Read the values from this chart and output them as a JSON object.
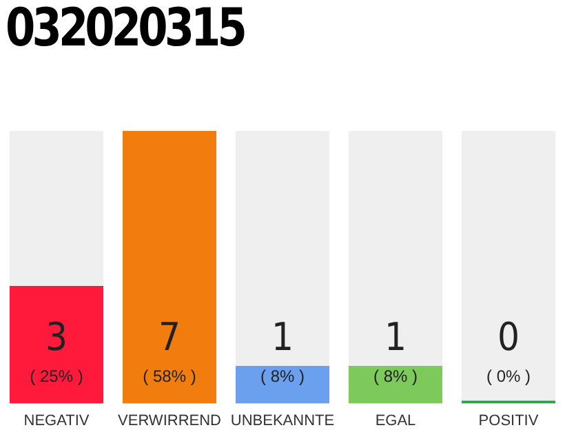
{
  "chart_data": {
    "type": "bar",
    "title": "032020315",
    "categories": [
      "NEGATIV",
      "VERWIRREND",
      "UNBEKANNTE",
      "EGAL",
      "POSITIV"
    ],
    "values": [
      25,
      58,
      8,
      8,
      0
    ],
    "colors": [
      "#ff1a3c",
      "#f07d0e",
      "#6aa0ee",
      "#7dc95c",
      "#2ea04a"
    ],
    "value_labels": [
      "( 25% )",
      "( 58% )",
      "( 8% )",
      "( 8% )",
      "( 0% )"
    ],
    "annotations": [
      "3",
      "7",
      "1",
      "1",
      "0"
    ],
    "tick_labels": "x",
    "grid": false,
    "legend": false
  }
}
